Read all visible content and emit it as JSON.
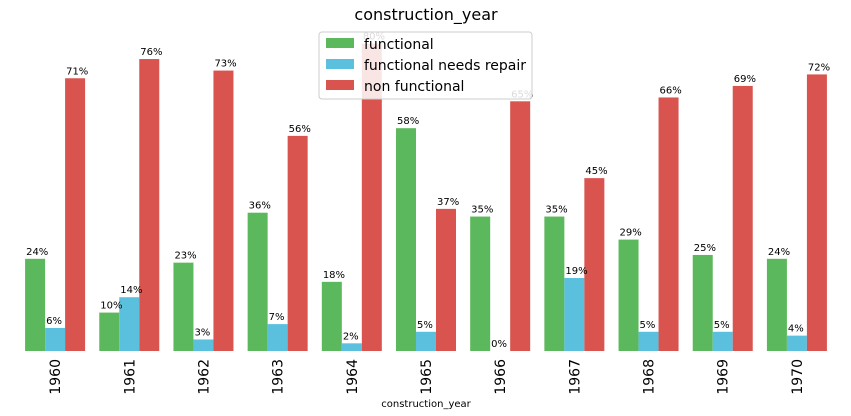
{
  "chart_data": {
    "type": "bar",
    "title": "construction_year",
    "xlabel": "construction_year",
    "ylabel": "",
    "ylim": [
      0,
      82
    ],
    "grid": false,
    "legend_position": "top-center",
    "categories": [
      "1960",
      "1961",
      "1962",
      "1963",
      "1964",
      "1965",
      "1966",
      "1967",
      "1968",
      "1969",
      "1970"
    ],
    "series": [
      {
        "name": "functional",
        "color": "#5cb85c",
        "values": [
          24,
          10,
          23,
          36,
          18,
          58,
          35,
          35,
          29,
          25,
          24
        ],
        "labels": [
          "24%",
          "10%",
          "23%",
          "36%",
          "18%",
          "58%",
          "35%",
          "35%",
          "29%",
          "25%",
          "24%"
        ]
      },
      {
        "name": "functional needs repair",
        "color": "#5bc0de",
        "values": [
          6,
          14,
          3,
          7,
          2,
          5,
          0,
          19,
          5,
          5,
          4
        ],
        "labels": [
          "6%",
          "14%",
          "3%",
          "7%",
          "2%",
          "5%",
          "0%",
          "19%",
          "5%",
          "5%",
          "4%"
        ]
      },
      {
        "name": "non functional",
        "color": "#d9534f",
        "values": [
          71,
          76,
          73,
          56,
          80,
          37,
          65,
          45,
          66,
          69,
          72
        ],
        "labels": [
          "71%",
          "76%",
          "73%",
          "56%",
          "80%",
          "37%",
          "65%",
          "45%",
          "66%",
          "69%",
          "72%"
        ]
      }
    ]
  }
}
